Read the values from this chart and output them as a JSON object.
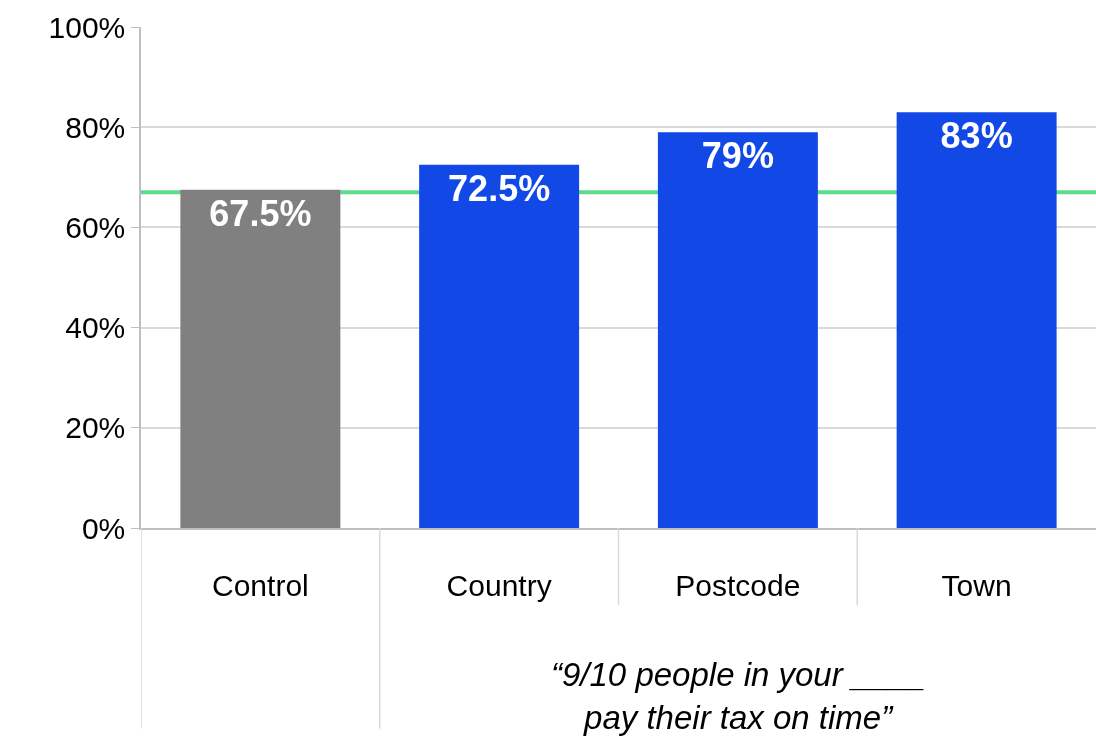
{
  "chart_data": {
    "type": "bar",
    "categories": [
      "Control",
      "Country",
      "Postcode",
      "Town"
    ],
    "values": [
      67.5,
      72.5,
      79,
      83
    ],
    "colors": [
      "#808080",
      "#1249e6",
      "#1249e6",
      "#1249e6"
    ],
    "value_labels": [
      "67.5%",
      "72.5%",
      "79%",
      "83%"
    ],
    "ylim": [
      0,
      100
    ],
    "yticks": [
      {
        "value": 0,
        "label": "0%"
      },
      {
        "value": 20,
        "label": "20%"
      },
      {
        "value": 40,
        "label": "40%"
      },
      {
        "value": 60,
        "label": "60%"
      },
      {
        "value": 80,
        "label": "80%"
      },
      {
        "value": 100,
        "label": "100%"
      }
    ],
    "grid": "y",
    "ref_lines": [
      {
        "axis": "y",
        "value": 67,
        "color": "#5ddc8c"
      }
    ],
    "annotations": [
      "“9/10 people in your ____\npay their tax on time”"
    ],
    "legend": false
  }
}
